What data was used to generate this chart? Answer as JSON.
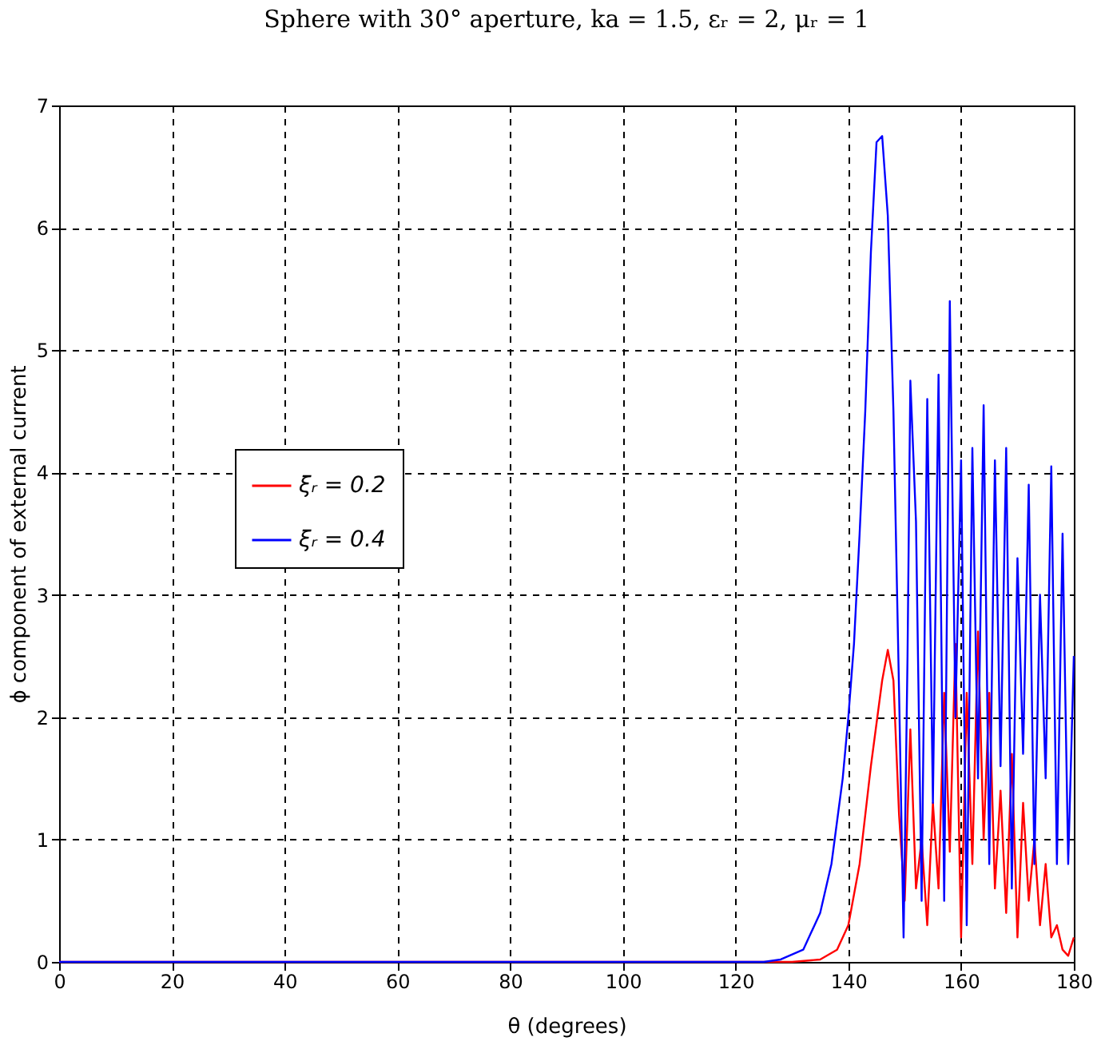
{
  "chart_data": {
    "type": "line",
    "title": "Sphere with 30° aperture,  ka = 1.5, εᵣ = 2, μᵣ = 1",
    "xlabel": "θ (degrees)",
    "ylabel": "ϕ component of external current",
    "xlim": [
      0,
      180
    ],
    "xticks": [
      0,
      20,
      40,
      60,
      80,
      100,
      120,
      140,
      160,
      180
    ],
    "ylim": [
      0,
      7
    ],
    "yticks": [
      0,
      1,
      2,
      3,
      4,
      5,
      6,
      7
    ],
    "grid": true,
    "legend": "left",
    "line_style": "solid",
    "marker": "none",
    "series": [
      {
        "name": "ξᵣ = 0.2",
        "color": "#ff0000",
        "x": [
          0,
          130,
          135,
          138,
          140,
          142,
          144,
          146,
          147,
          148,
          149,
          150,
          151,
          152,
          153,
          154,
          155,
          156,
          157,
          158,
          159,
          160,
          161,
          162,
          163,
          164,
          165,
          166,
          167,
          168,
          169,
          170,
          171,
          172,
          173,
          174,
          175,
          176,
          177,
          178,
          179,
          180
        ],
        "values": [
          0,
          0,
          0.02,
          0.1,
          0.3,
          0.8,
          1.6,
          2.3,
          2.55,
          2.3,
          1.2,
          0.5,
          1.9,
          0.6,
          1.0,
          0.3,
          1.3,
          0.6,
          2.2,
          0.9,
          2.6,
          0.2,
          2.2,
          0.8,
          2.7,
          1.0,
          2.2,
          0.6,
          1.4,
          0.4,
          1.7,
          0.2,
          1.3,
          0.5,
          1.0,
          0.3,
          0.8,
          0.2,
          0.3,
          0.1,
          0.05,
          0.2
        ]
      },
      {
        "name": "ξᵣ = 0.4",
        "color": "#0000ff",
        "x": [
          0,
          125,
          128,
          132,
          135,
          137,
          139,
          140,
          141,
          142,
          143,
          144,
          145,
          146,
          147,
          148,
          149,
          149.8,
          150.5,
          151,
          152,
          153,
          154,
          155,
          156,
          157,
          158,
          159,
          160,
          161,
          162,
          163,
          164,
          165,
          166,
          167,
          168,
          169,
          170,
          171,
          172,
          173,
          174,
          175,
          176,
          177,
          178,
          179,
          180
        ],
        "values": [
          0,
          0,
          0.02,
          0.1,
          0.4,
          0.8,
          1.5,
          2.0,
          2.6,
          3.5,
          4.5,
          5.8,
          6.7,
          6.75,
          6.1,
          4.5,
          2.2,
          0.2,
          2.5,
          4.75,
          3.6,
          0.5,
          4.6,
          1.3,
          4.8,
          0.5,
          5.4,
          2.0,
          4.1,
          0.3,
          4.2,
          1.5,
          4.55,
          0.8,
          4.1,
          1.6,
          4.2,
          0.6,
          3.3,
          1.7,
          3.9,
          0.8,
          3.0,
          1.5,
          4.05,
          0.8,
          3.5,
          0.8,
          2.5
        ]
      }
    ]
  }
}
